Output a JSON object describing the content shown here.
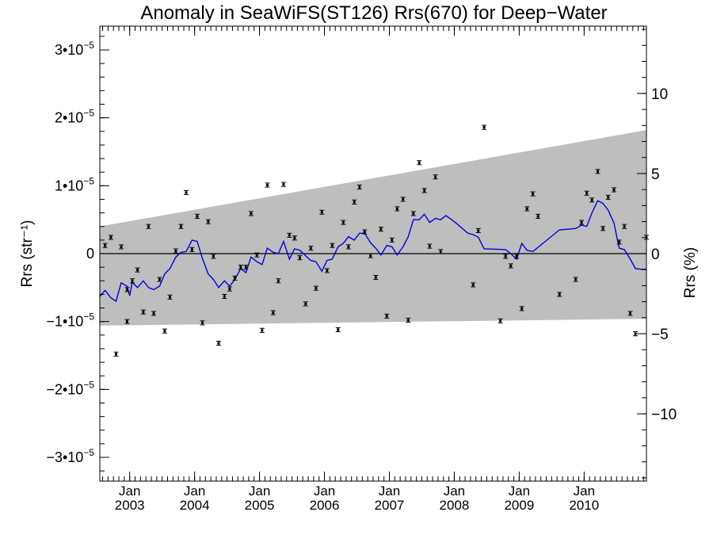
{
  "chart_data": {
    "type": "scatter",
    "title": "Anomaly in SeaWiFS(ST126) Rrs(670) for Deep−Water",
    "ylabel_left": "Rrs (str⁻¹)",
    "ylabel_right": "Rrs (%)",
    "xlim": [
      2002.54,
      2010.96
    ],
    "ylim": [
      -3.35e-05,
      3.35e-05
    ],
    "right_ylim_pct": [
      -14.2,
      14.2
    ],
    "x_ticks": [
      {
        "x": 2003.0,
        "month": "Jan",
        "year": "2003"
      },
      {
        "x": 2004.0,
        "month": "Jan",
        "year": "2004"
      },
      {
        "x": 2005.0,
        "month": "Jan",
        "year": "2005"
      },
      {
        "x": 2006.0,
        "month": "Jan",
        "year": "2006"
      },
      {
        "x": 2007.0,
        "month": "Jan",
        "year": "2007"
      },
      {
        "x": 2008.0,
        "month": "Jan",
        "year": "2008"
      },
      {
        "x": 2009.0,
        "month": "Jan",
        "year": "2009"
      },
      {
        "x": 2010.0,
        "month": "Jan",
        "year": "2010"
      }
    ],
    "y_ticks_left": [
      {
        "v": 3e-05,
        "m": "3•10",
        "e": "−5"
      },
      {
        "v": 2e-05,
        "m": "2•10",
        "e": "−5"
      },
      {
        "v": 1e-05,
        "m": "1•10",
        "e": "−5"
      },
      {
        "v": 0,
        "m": "0",
        "e": ""
      },
      {
        "v": -1e-05,
        "m": "−1•10",
        "e": "−5"
      },
      {
        "v": -2e-05,
        "m": "−2•10",
        "e": "−5"
      },
      {
        "v": -3e-05,
        "m": "−3•10",
        "e": "−5"
      }
    ],
    "y_ticks_right": [
      {
        "v": 10,
        "label": "10"
      },
      {
        "v": 5,
        "label": "5"
      },
      {
        "v": 0,
        "label": "0"
      },
      {
        "v": -5,
        "label": "−5"
      },
      {
        "v": -10,
        "label": "−10"
      }
    ],
    "band": {
      "upper": [
        [
          2002.54,
          4e-06
        ],
        [
          2010.96,
          1.82e-05
        ]
      ],
      "lower": [
        [
          2002.54,
          -1.06e-05
        ],
        [
          2010.96,
          -9.6e-06
        ]
      ],
      "color": "#bebebe"
    },
    "zero_line": 0,
    "series": [
      {
        "type": "scatter_errorbar",
        "color": "#000000",
        "points": [
          [
            2002.62,
            1.2e-06
          ],
          [
            2002.71,
            2.4e-06
          ],
          [
            2002.79,
            -1.48e-05
          ],
          [
            2002.87,
            1e-06
          ],
          [
            2002.96,
            -1e-05
          ],
          [
            2002.96,
            -5.3e-06
          ],
          [
            2003.04,
            -4e-06
          ],
          [
            2003.12,
            -2.4e-06
          ],
          [
            2003.21,
            -8.6e-06
          ],
          [
            2003.29,
            4e-06
          ],
          [
            2003.37,
            -8.8e-06
          ],
          [
            2003.46,
            -3.8e-06
          ],
          [
            2003.54,
            -1.14e-05
          ],
          [
            2003.62,
            -6.4e-06
          ],
          [
            2003.71,
            4e-07
          ],
          [
            2003.79,
            4e-06
          ],
          [
            2003.87,
            9e-06
          ],
          [
            2003.96,
            6e-07
          ],
          [
            2004.04,
            5.5e-06
          ],
          [
            2004.12,
            -1.02e-05
          ],
          [
            2004.21,
            4.7e-06
          ],
          [
            2004.29,
            -4e-07
          ],
          [
            2004.37,
            -1.32e-05
          ],
          [
            2004.46,
            -6.3e-06
          ],
          [
            2004.54,
            -5.2e-06
          ],
          [
            2004.62,
            -3.6e-06
          ],
          [
            2004.71,
            -2e-06
          ],
          [
            2004.79,
            -2e-06
          ],
          [
            2004.87,
            5.9e-06
          ],
          [
            2004.96,
            -2e-07
          ],
          [
            2005.04,
            -1.13e-05
          ],
          [
            2005.12,
            1.01e-05
          ],
          [
            2005.21,
            -8.7e-06
          ],
          [
            2005.29,
            -4e-06
          ],
          [
            2005.37,
            1.02e-05
          ],
          [
            2005.46,
            2.7e-06
          ],
          [
            2005.54,
            2.3e-06
          ],
          [
            2005.62,
            -6e-07
          ],
          [
            2005.71,
            -7.4e-06
          ],
          [
            2005.79,
            8e-07
          ],
          [
            2005.87,
            -5.1e-06
          ],
          [
            2005.96,
            6.1e-06
          ],
          [
            2006.04,
            -2.5e-06
          ],
          [
            2006.12,
            1.2e-06
          ],
          [
            2006.21,
            -1.12e-05
          ],
          [
            2006.29,
            4.6e-06
          ],
          [
            2006.37,
            1e-06
          ],
          [
            2006.46,
            7.6e-06
          ],
          [
            2006.54,
            9.8e-06
          ],
          [
            2006.62,
            3.2e-06
          ],
          [
            2006.71,
            -3e-07
          ],
          [
            2006.79,
            -3.5e-06
          ],
          [
            2006.87,
            3.6e-06
          ],
          [
            2006.96,
            -9.2e-06
          ],
          [
            2007.04,
            2e-06
          ],
          [
            2007.12,
            6.6e-06
          ],
          [
            2007.21,
            8e-06
          ],
          [
            2007.29,
            -9.8e-06
          ],
          [
            2007.37,
            5.9e-06
          ],
          [
            2007.46,
            1.34e-05
          ],
          [
            2007.54,
            9.3e-06
          ],
          [
            2007.62,
            1.1e-06
          ],
          [
            2007.71,
            1.13e-05
          ],
          [
            2007.79,
            3e-07
          ],
          [
            2008.29,
            -4.6e-06
          ],
          [
            2008.37,
            3.4e-06
          ],
          [
            2008.46,
            1.86e-05
          ],
          [
            2008.71,
            -9.9e-06
          ],
          [
            2008.79,
            -4e-07
          ],
          [
            2008.87,
            -1.8e-06
          ],
          [
            2008.96,
            -4e-07
          ],
          [
            2009.04,
            -8.1e-06
          ],
          [
            2009.12,
            6.6e-06
          ],
          [
            2009.21,
            8.8e-06
          ],
          [
            2009.29,
            5.5e-06
          ],
          [
            2009.62,
            -6e-06
          ],
          [
            2009.87,
            -3.8e-06
          ],
          [
            2009.96,
            4.6e-06
          ],
          [
            2010.04,
            8.9e-06
          ],
          [
            2010.12,
            7.9e-06
          ],
          [
            2010.21,
            1.21e-05
          ],
          [
            2010.29,
            3.7e-06
          ],
          [
            2010.37,
            8.3e-06
          ],
          [
            2010.46,
            9.4e-06
          ],
          [
            2010.54,
            1.7e-06
          ],
          [
            2010.62,
            4e-06
          ],
          [
            2010.71,
            -8.8e-06
          ],
          [
            2010.79,
            -1.18e-05
          ],
          [
            2010.96,
            2.4e-06
          ]
        ],
        "error": 3e-07
      },
      {
        "type": "line",
        "color": "#0000dd",
        "points": [
          [
            2002.54,
            -6.3e-06
          ],
          [
            2002.62,
            -5.4e-06
          ],
          [
            2002.71,
            -6.5e-06
          ],
          [
            2002.79,
            -7e-06
          ],
          [
            2002.87,
            -4.3e-06
          ],
          [
            2002.96,
            -4.8e-06
          ],
          [
            2003.0,
            -6.2e-06
          ],
          [
            2003.04,
            -4.2e-06
          ],
          [
            2003.12,
            -5e-06
          ],
          [
            2003.21,
            -4e-06
          ],
          [
            2003.29,
            -5e-06
          ],
          [
            2003.37,
            -5.3e-06
          ],
          [
            2003.46,
            -4.8e-06
          ],
          [
            2003.54,
            -3e-06
          ],
          [
            2003.62,
            -2.2e-06
          ],
          [
            2003.71,
            -5e-07
          ],
          [
            2003.79,
            2e-07
          ],
          [
            2003.87,
            3e-07
          ],
          [
            2003.96,
            2e-06
          ],
          [
            2004.04,
            1.8e-06
          ],
          [
            2004.12,
            -7e-07
          ],
          [
            2004.21,
            -3e-06
          ],
          [
            2004.29,
            -3.8e-06
          ],
          [
            2004.37,
            -5e-06
          ],
          [
            2004.46,
            -4e-06
          ],
          [
            2004.54,
            -4.8e-06
          ],
          [
            2004.62,
            -3.8e-06
          ],
          [
            2004.71,
            -2.2e-06
          ],
          [
            2004.79,
            -2.8e-06
          ],
          [
            2004.87,
            -5e-07
          ],
          [
            2004.96,
            -1.2e-06
          ],
          [
            2005.04,
            -1.6e-06
          ],
          [
            2005.12,
            8e-07
          ],
          [
            2005.21,
            2e-07
          ],
          [
            2005.29,
            0.0
          ],
          [
            2005.37,
            1.8e-06
          ],
          [
            2005.46,
            -8e-07
          ],
          [
            2005.54,
            7e-07
          ],
          [
            2005.62,
            5e-07
          ],
          [
            2005.71,
            -3e-07
          ],
          [
            2005.79,
            -1e-06
          ],
          [
            2005.87,
            -1.2e-06
          ],
          [
            2005.96,
            -2.6e-06
          ],
          [
            2006.04,
            -1e-06
          ],
          [
            2006.12,
            -8e-07
          ],
          [
            2006.21,
            1e-06
          ],
          [
            2006.29,
            1.5e-06
          ],
          [
            2006.37,
            2.5e-06
          ],
          [
            2006.46,
            2e-06
          ],
          [
            2006.54,
            3e-06
          ],
          [
            2006.62,
            3e-06
          ],
          [
            2006.71,
            1.6e-06
          ],
          [
            2006.79,
            8e-07
          ],
          [
            2006.87,
            -2e-07
          ],
          [
            2006.96,
            1.2e-06
          ],
          [
            2007.04,
            1e-06
          ],
          [
            2007.12,
            -2e-07
          ],
          [
            2007.21,
            1e-06
          ],
          [
            2007.29,
            2.5e-06
          ],
          [
            2007.37,
            5e-06
          ],
          [
            2007.46,
            5e-06
          ],
          [
            2007.54,
            5.8e-06
          ],
          [
            2007.62,
            4.6e-06
          ],
          [
            2007.71,
            5.2e-06
          ],
          [
            2007.79,
            5e-06
          ],
          [
            2007.87,
            5.6e-06
          ],
          [
            2007.96,
            5e-06
          ],
          [
            2008.04,
            4.4e-06
          ],
          [
            2008.21,
            3e-06
          ],
          [
            2008.29,
            2.8e-06
          ],
          [
            2008.37,
            2.4e-06
          ],
          [
            2008.46,
            7e-07
          ],
          [
            2008.79,
            6e-07
          ],
          [
            2008.87,
            0.0
          ],
          [
            2008.96,
            -8e-07
          ],
          [
            2009.04,
            1.5e-06
          ],
          [
            2009.12,
            5e-07
          ],
          [
            2009.21,
            3e-07
          ],
          [
            2009.62,
            3.5e-06
          ],
          [
            2009.87,
            3.7e-06
          ],
          [
            2009.96,
            4.2e-06
          ],
          [
            2010.04,
            4e-06
          ],
          [
            2010.12,
            6e-06
          ],
          [
            2010.21,
            7.8e-06
          ],
          [
            2010.29,
            7.4e-06
          ],
          [
            2010.37,
            6.4e-06
          ],
          [
            2010.46,
            4.5e-06
          ],
          [
            2010.54,
            8e-07
          ],
          [
            2010.62,
            6e-07
          ],
          [
            2010.71,
            -8e-07
          ],
          [
            2010.79,
            -2.2e-06
          ],
          [
            2010.87,
            -2.3e-06
          ],
          [
            2010.96,
            -2.3e-06
          ]
        ]
      }
    ],
    "grid": false,
    "legend": "none"
  }
}
